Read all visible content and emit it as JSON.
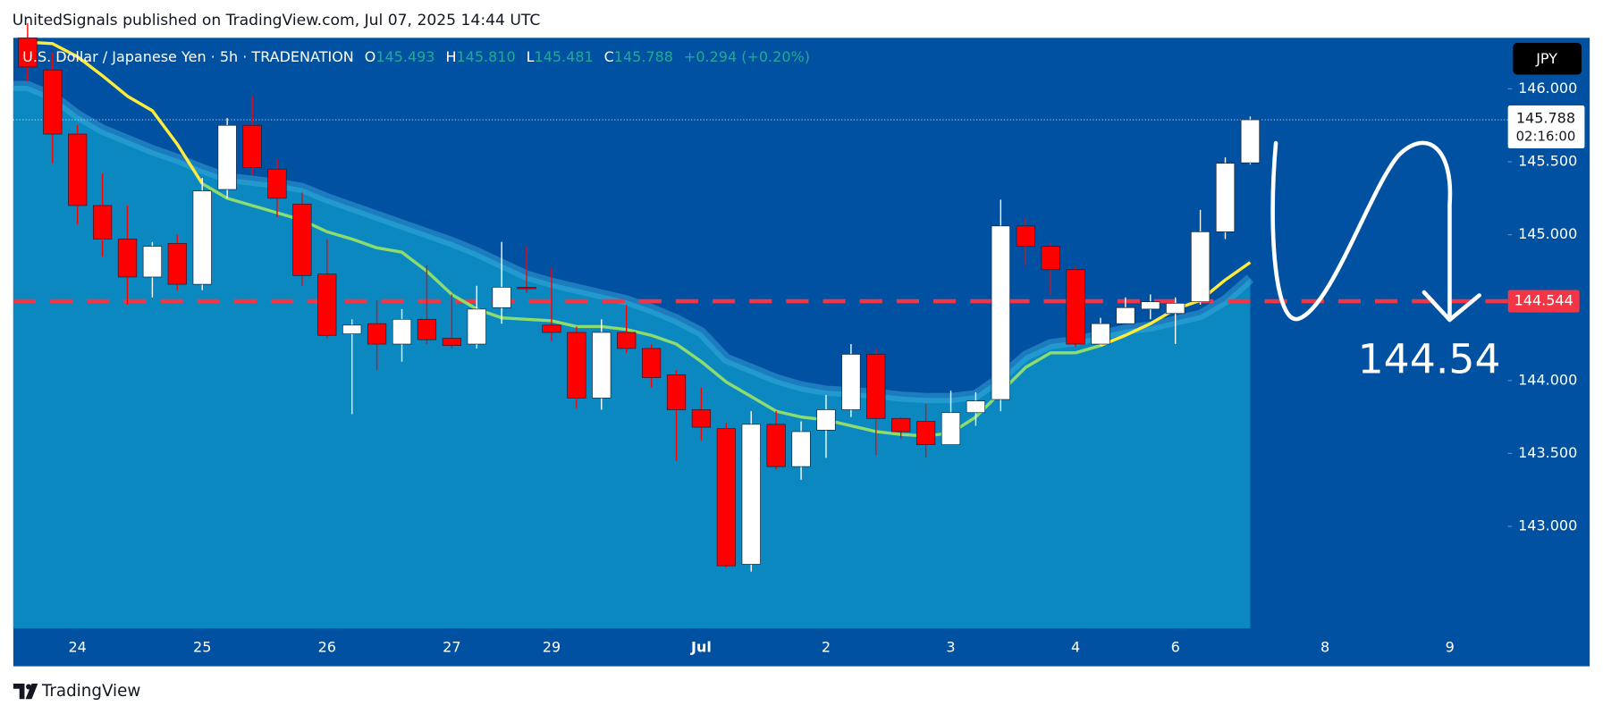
{
  "header": {
    "byline": "UnitedSignals published on TradingView.com, Jul 07, 2025 14:44 UTC"
  },
  "footer": {
    "brand": "TradingView"
  },
  "chart_data": {
    "type": "candlestick",
    "title": "U.S. Dollar / Japanese Yen · 5h · TRADENATION",
    "legend": {
      "open_label": "O",
      "open": "145.493",
      "high_label": "H",
      "high": "145.810",
      "low_label": "L",
      "low": "145.481",
      "close_label": "C",
      "close": "145.788",
      "change": "+0.294 (+0.20%)"
    },
    "currency": "JPY",
    "up_color": "#ffffff",
    "down_color": "#ff0000",
    "background": "#0051a1",
    "categories": [
      null,
      null,
      "24",
      null,
      null,
      null,
      null,
      "25",
      null,
      null,
      null,
      null,
      "26",
      null,
      null,
      null,
      null,
      "27",
      null,
      null,
      null,
      "29",
      null,
      null,
      null,
      null,
      null,
      "Jul",
      null,
      null,
      null,
      null,
      "2",
      null,
      null,
      null,
      null,
      "3",
      null,
      null,
      null,
      null,
      "4",
      null,
      null,
      null,
      "6",
      null,
      null,
      null,
      null,
      null,
      "8",
      null,
      null,
      null,
      null,
      "9",
      null,
      null
    ],
    "open": [
      146.35,
      146.13,
      145.69,
      145.2,
      144.97,
      144.71,
      144.94,
      144.66,
      145.31,
      145.75,
      145.45,
      145.21,
      144.73,
      144.32,
      144.39,
      144.25,
      144.42,
      144.29,
      144.25,
      144.5,
      144.64,
      144.38,
      144.33,
      143.88,
      144.33,
      144.22,
      144.04,
      143.8,
      143.67,
      142.74,
      143.7,
      143.41,
      143.66,
      143.8,
      144.18,
      143.74,
      143.72,
      143.56,
      143.78,
      143.87,
      145.06,
      144.92,
      144.76,
      144.25,
      144.39,
      144.49,
      144.46,
      144.54,
      145.02,
      145.493,
      null,
      null,
      null,
      null,
      null,
      null,
      null,
      null,
      null,
      null
    ],
    "high": [
      146.45,
      146.25,
      145.75,
      145.42,
      145.2,
      144.95,
      145.0,
      145.39,
      145.8,
      145.95,
      145.52,
      145.29,
      144.97,
      144.42,
      144.55,
      144.49,
      144.79,
      144.59,
      144.65,
      144.95,
      144.92,
      144.77,
      144.37,
      144.42,
      144.52,
      144.25,
      144.07,
      143.95,
      143.71,
      143.79,
      143.79,
      143.72,
      143.9,
      144.25,
      144.22,
      143.75,
      143.84,
      143.93,
      143.92,
      145.24,
      145.12,
      144.95,
      144.79,
      144.43,
      144.57,
      144.59,
      144.57,
      145.17,
      145.53,
      145.81,
      null,
      null,
      null,
      null,
      null,
      null,
      null,
      null,
      null,
      null
    ],
    "low": [
      146.05,
      145.49,
      145.07,
      144.85,
      144.52,
      144.57,
      144.62,
      144.62,
      145.25,
      145.41,
      145.12,
      144.65,
      144.29,
      143.77,
      144.07,
      144.13,
      144.25,
      144.22,
      144.22,
      144.39,
      144.6,
      144.27,
      143.81,
      143.8,
      144.19,
      143.95,
      143.45,
      143.59,
      142.72,
      142.69,
      143.39,
      143.32,
      143.47,
      143.75,
      143.49,
      143.6,
      143.47,
      143.56,
      143.69,
      143.79,
      144.79,
      144.59,
      144.23,
      144.24,
      144.39,
      144.42,
      144.25,
      144.52,
      144.97,
      145.481,
      null,
      null,
      null,
      null,
      null,
      null,
      null,
      null,
      null,
      null
    ],
    "close": [
      146.15,
      145.69,
      145.2,
      144.97,
      144.71,
      144.92,
      144.66,
      145.3,
      145.75,
      145.46,
      145.25,
      144.72,
      144.31,
      144.38,
      144.25,
      144.42,
      144.28,
      144.24,
      144.49,
      144.64,
      144.63,
      144.33,
      143.88,
      144.33,
      144.22,
      144.02,
      143.8,
      143.68,
      142.73,
      143.7,
      143.41,
      143.65,
      143.8,
      144.18,
      143.74,
      143.65,
      143.56,
      143.78,
      143.86,
      145.06,
      144.92,
      144.76,
      144.25,
      144.39,
      144.5,
      144.54,
      144.53,
      145.02,
      145.49,
      145.788,
      null,
      null,
      null,
      null,
      null,
      null,
      null,
      null,
      null,
      null
    ],
    "area": {
      "color": "#0b88bf",
      "edge_color": "#3fb1e3",
      "values": [
        146.02,
        145.95,
        145.82,
        145.72,
        145.65,
        145.58,
        145.52,
        145.45,
        145.39,
        145.37,
        145.35,
        145.32,
        145.25,
        145.19,
        145.13,
        145.07,
        145.01,
        144.95,
        144.88,
        144.8,
        144.72,
        144.67,
        144.63,
        144.59,
        144.55,
        144.49,
        144.42,
        144.33,
        144.15,
        144.08,
        144.01,
        143.96,
        143.93,
        143.92,
        143.91,
        143.89,
        143.88,
        143.88,
        143.9,
        144.02,
        144.17,
        144.25,
        144.27,
        144.31,
        144.35,
        144.37,
        144.41,
        144.45,
        144.55,
        144.7,
        null,
        null,
        null,
        null,
        null,
        null,
        null,
        null,
        null,
        null
      ]
    },
    "series": [
      {
        "color": "#ffeb3b",
        "values": [
          146.32,
          146.31,
          146.22,
          146.09,
          145.95,
          145.85,
          145.62,
          145.35,
          null,
          null,
          null,
          null,
          null,
          null,
          null,
          null,
          null,
          null,
          null,
          null,
          null,
          null,
          null,
          null,
          null,
          null,
          null,
          null,
          null,
          null,
          null,
          null,
          null,
          null,
          null,
          null,
          null,
          null,
          null,
          null,
          null,
          null,
          null,
          144.24,
          144.31,
          144.39,
          144.49,
          144.55,
          144.69,
          144.81,
          null,
          null,
          null,
          null,
          null,
          null,
          null,
          null,
          null,
          null
        ]
      },
      {
        "color": "#8fdc6e",
        "values": [
          null,
          null,
          null,
          null,
          null,
          null,
          null,
          145.35,
          145.25,
          145.2,
          145.15,
          145.1,
          145.02,
          144.97,
          144.91,
          144.88,
          144.75,
          144.59,
          144.49,
          144.43,
          144.42,
          144.41,
          144.37,
          144.37,
          144.35,
          144.31,
          144.25,
          144.13,
          143.99,
          143.89,
          143.79,
          143.75,
          143.73,
          143.69,
          143.65,
          143.63,
          143.62,
          143.64,
          143.75,
          143.92,
          144.09,
          144.19,
          144.19,
          144.24,
          null,
          null,
          null,
          null,
          null,
          null,
          null,
          null,
          null,
          null,
          null,
          null,
          null,
          null,
          null,
          null
        ]
      }
    ],
    "price_line": {
      "value": 145.788,
      "label": "145.788",
      "countdown": "02:16:00"
    },
    "level_line": {
      "value": 144.544,
      "label": "144.544",
      "color": "#f23645"
    },
    "annotation": "144.54",
    "ylim": [
      142.3,
      146.35
    ],
    "yticks": [
      {
        "value": 146,
        "label": "146.000"
      },
      {
        "value": 145.5,
        "label": "145.500"
      },
      {
        "value": 145,
        "label": "145.000"
      },
      {
        "value": 144,
        "label": "144.000"
      },
      {
        "value": 143.5,
        "label": "143.500"
      },
      {
        "value": 143,
        "label": "143.000"
      }
    ],
    "grid": false
  }
}
